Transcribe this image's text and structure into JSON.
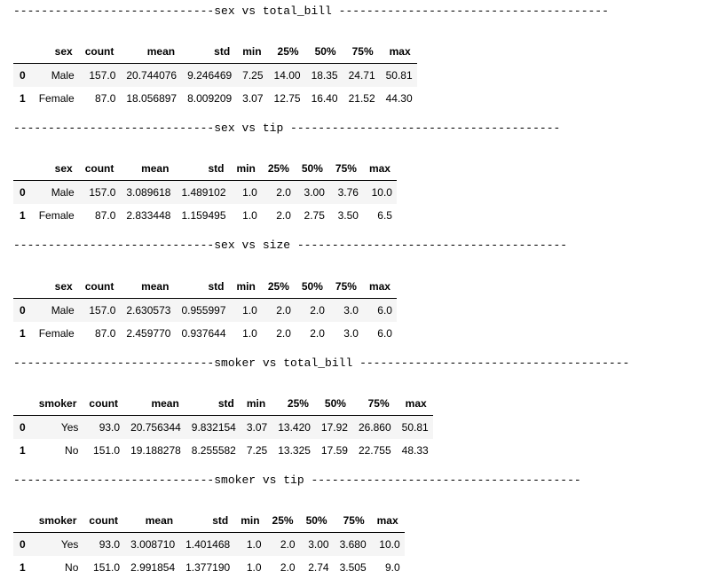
{
  "sections": [
    {
      "separator": "-----------------------------sex vs total_bill ---------------------------------------",
      "index_header": "sex",
      "columns": [
        "count",
        "mean",
        "std",
        "min",
        "25%",
        "50%",
        "75%",
        "max"
      ],
      "rows": [
        {
          "idx": "0",
          "label": "Male",
          "values": [
            "157.0",
            "20.744076",
            "9.246469",
            "7.25",
            "14.00",
            "18.35",
            "24.71",
            "50.81"
          ]
        },
        {
          "idx": "1",
          "label": "Female",
          "values": [
            "87.0",
            "18.056897",
            "8.009209",
            "3.07",
            "12.75",
            "16.40",
            "21.52",
            "44.30"
          ]
        }
      ]
    },
    {
      "separator": "-----------------------------sex vs tip ---------------------------------------",
      "index_header": "sex",
      "columns": [
        "count",
        "mean",
        "std",
        "min",
        "25%",
        "50%",
        "75%",
        "max"
      ],
      "rows": [
        {
          "idx": "0",
          "label": "Male",
          "values": [
            "157.0",
            "3.089618",
            "1.489102",
            "1.0",
            "2.0",
            "3.00",
            "3.76",
            "10.0"
          ]
        },
        {
          "idx": "1",
          "label": "Female",
          "values": [
            "87.0",
            "2.833448",
            "1.159495",
            "1.0",
            "2.0",
            "2.75",
            "3.50",
            "6.5"
          ]
        }
      ]
    },
    {
      "separator": "-----------------------------sex vs size ---------------------------------------",
      "index_header": "sex",
      "columns": [
        "count",
        "mean",
        "std",
        "min",
        "25%",
        "50%",
        "75%",
        "max"
      ],
      "rows": [
        {
          "idx": "0",
          "label": "Male",
          "values": [
            "157.0",
            "2.630573",
            "0.955997",
            "1.0",
            "2.0",
            "2.0",
            "3.0",
            "6.0"
          ]
        },
        {
          "idx": "1",
          "label": "Female",
          "values": [
            "87.0",
            "2.459770",
            "0.937644",
            "1.0",
            "2.0",
            "2.0",
            "3.0",
            "6.0"
          ]
        }
      ]
    },
    {
      "separator": "-----------------------------smoker vs total_bill ---------------------------------------",
      "index_header": "smoker",
      "columns": [
        "count",
        "mean",
        "std",
        "min",
        "25%",
        "50%",
        "75%",
        "max"
      ],
      "rows": [
        {
          "idx": "0",
          "label": "Yes",
          "values": [
            "93.0",
            "20.756344",
            "9.832154",
            "3.07",
            "13.420",
            "17.92",
            "26.860",
            "50.81"
          ]
        },
        {
          "idx": "1",
          "label": "No",
          "values": [
            "151.0",
            "19.188278",
            "8.255582",
            "7.25",
            "13.325",
            "17.59",
            "22.755",
            "48.33"
          ]
        }
      ]
    },
    {
      "separator": "-----------------------------smoker vs tip ---------------------------------------",
      "index_header": "smoker",
      "columns": [
        "count",
        "mean",
        "std",
        "min",
        "25%",
        "50%",
        "75%",
        "max"
      ],
      "rows": [
        {
          "idx": "0",
          "label": "Yes",
          "values": [
            "93.0",
            "3.008710",
            "1.401468",
            "1.0",
            "2.0",
            "3.00",
            "3.680",
            "10.0"
          ]
        },
        {
          "idx": "1",
          "label": "No",
          "values": [
            "151.0",
            "2.991854",
            "1.377190",
            "1.0",
            "2.0",
            "2.74",
            "3.505",
            "9.0"
          ]
        }
      ]
    }
  ]
}
